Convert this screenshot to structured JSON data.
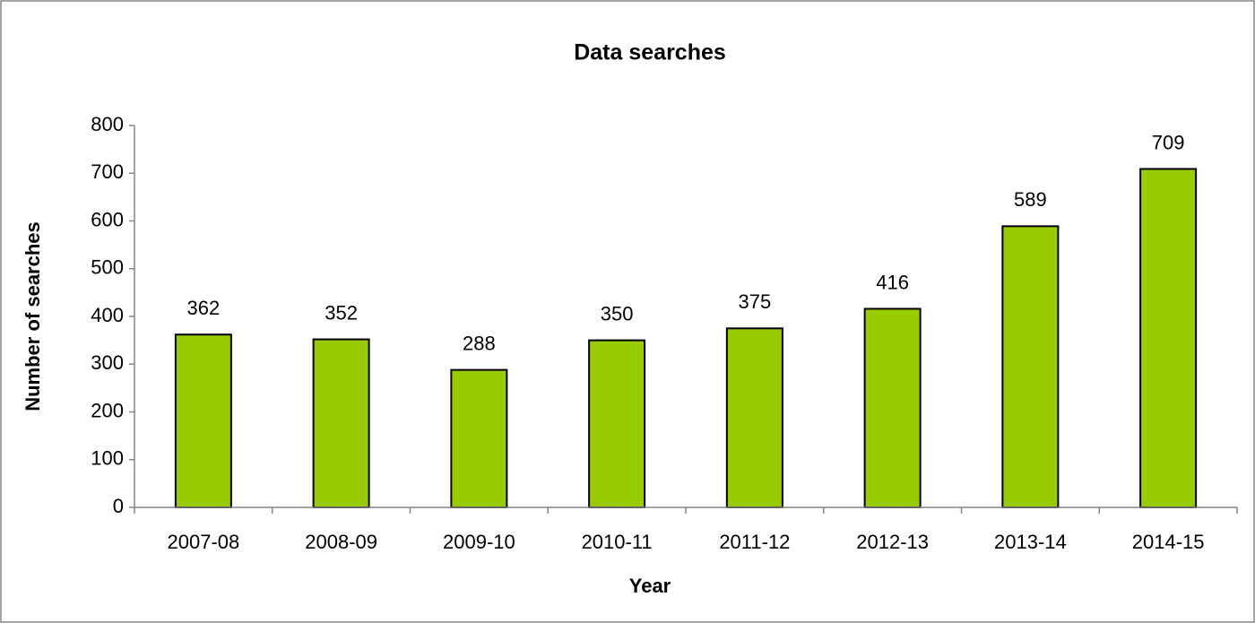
{
  "chart_data": {
    "type": "bar",
    "title": "Data searches",
    "x_label": "Year",
    "y_label": "Number of searches",
    "categories": [
      "2007-08",
      "2008-09",
      "2009-10",
      "2010-11",
      "2011-12",
      "2012-13",
      "2013-14",
      "2014-15"
    ],
    "values": [
      362,
      352,
      288,
      350,
      375,
      416,
      589,
      709
    ],
    "color": "#99cc00",
    "ylim": [
      0,
      800
    ],
    "yticks": [
      0,
      100,
      200,
      300,
      400,
      500,
      600,
      700,
      800
    ],
    "grid": false
  }
}
